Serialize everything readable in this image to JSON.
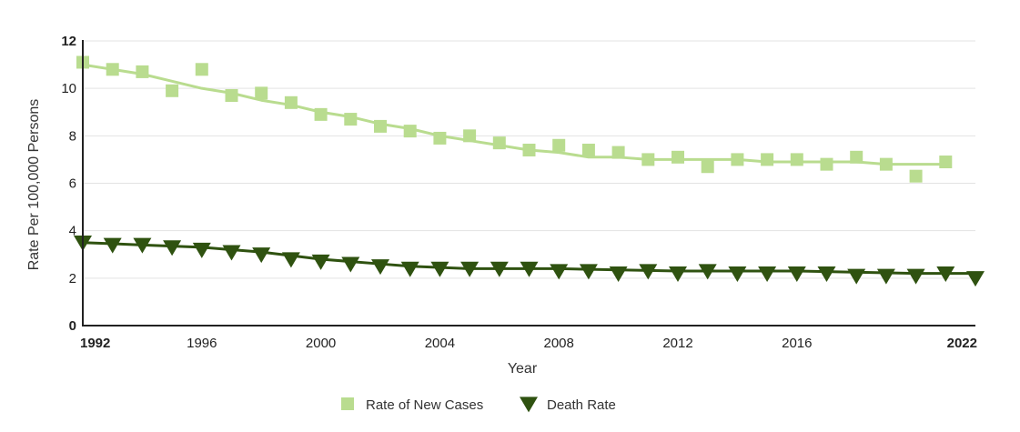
{
  "chart_data": {
    "type": "scatter",
    "xlabel": "Year",
    "ylabel": "Rate Per 100,000 Persons",
    "xlim": [
      1992,
      2022
    ],
    "ylim": [
      0,
      12
    ],
    "x_ticks": [
      {
        "value": 1992,
        "label": "1992",
        "bold": true
      },
      {
        "value": 1996,
        "label": "1996",
        "bold": false
      },
      {
        "value": 2000,
        "label": "2000",
        "bold": false
      },
      {
        "value": 2004,
        "label": "2004",
        "bold": false
      },
      {
        "value": 2008,
        "label": "2008",
        "bold": false
      },
      {
        "value": 2012,
        "label": "2012",
        "bold": false
      },
      {
        "value": 2016,
        "label": "2016",
        "bold": false
      },
      {
        "value": 2022,
        "label": "2022",
        "bold": true
      }
    ],
    "y_ticks": [
      {
        "value": 0,
        "label": "0",
        "bold": true
      },
      {
        "value": 2,
        "label": "2",
        "bold": false
      },
      {
        "value": 4,
        "label": "4",
        "bold": false
      },
      {
        "value": 6,
        "label": "6",
        "bold": false
      },
      {
        "value": 8,
        "label": "8",
        "bold": false
      },
      {
        "value": 10,
        "label": "10",
        "bold": false
      },
      {
        "value": 12,
        "label": "12",
        "bold": true
      }
    ],
    "grid": true,
    "legend_position": "bottom-center",
    "series": [
      {
        "name": "Rate of New Cases",
        "marker": "square",
        "color": "#b9dc8f",
        "x": [
          1992,
          1993,
          1994,
          1995,
          1996,
          1997,
          1998,
          1999,
          2000,
          2001,
          2002,
          2003,
          2004,
          2005,
          2006,
          2007,
          2008,
          2009,
          2010,
          2011,
          2012,
          2013,
          2014,
          2015,
          2016,
          2017,
          2018,
          2019,
          2020,
          2021
        ],
        "values": [
          11.1,
          10.8,
          10.7,
          9.9,
          10.8,
          9.7,
          9.8,
          9.4,
          8.9,
          8.7,
          8.4,
          8.2,
          7.9,
          8.0,
          7.7,
          7.4,
          7.6,
          7.4,
          7.3,
          7.0,
          7.1,
          6.7,
          7.0,
          7.0,
          7.0,
          6.8,
          7.1,
          6.8,
          6.3,
          6.9
        ],
        "trend_x": [
          1992,
          1993,
          1994,
          1995,
          1996,
          1997,
          1998,
          1999,
          2000,
          2001,
          2002,
          2003,
          2004,
          2005,
          2006,
          2007,
          2008,
          2009,
          2010,
          2011,
          2012,
          2013,
          2014,
          2015,
          2016,
          2017,
          2018,
          2019,
          2020,
          2021
        ],
        "trend_values": [
          11.0,
          10.8,
          10.6,
          10.3,
          10.0,
          9.8,
          9.5,
          9.3,
          9.0,
          8.8,
          8.5,
          8.3,
          8.0,
          7.8,
          7.6,
          7.4,
          7.3,
          7.1,
          7.1,
          7.0,
          7.0,
          7.0,
          7.0,
          6.9,
          6.9,
          6.9,
          6.9,
          6.8,
          6.8,
          6.8
        ]
      },
      {
        "name": "Death Rate",
        "marker": "triangle-down",
        "color": "#2f5210",
        "x": [
          1992,
          1993,
          1994,
          1995,
          1996,
          1997,
          1998,
          1999,
          2000,
          2001,
          2002,
          2003,
          2004,
          2005,
          2006,
          2007,
          2008,
          2009,
          2010,
          2011,
          2012,
          2013,
          2014,
          2015,
          2016,
          2017,
          2018,
          2019,
          2020,
          2021,
          2022
        ],
        "values": [
          3.5,
          3.4,
          3.4,
          3.3,
          3.2,
          3.1,
          3.0,
          2.8,
          2.7,
          2.6,
          2.5,
          2.4,
          2.4,
          2.4,
          2.4,
          2.4,
          2.3,
          2.3,
          2.2,
          2.3,
          2.2,
          2.3,
          2.2,
          2.2,
          2.2,
          2.2,
          2.1,
          2.1,
          2.1,
          2.2,
          2.0
        ],
        "trend_x": [
          1992,
          1994,
          1996,
          1998,
          2000,
          2002,
          2003,
          2005,
          2008,
          2012,
          2016,
          2020,
          2022
        ],
        "trend_values": [
          3.5,
          3.4,
          3.3,
          3.1,
          2.8,
          2.6,
          2.5,
          2.4,
          2.4,
          2.3,
          2.3,
          2.2,
          2.2
        ]
      }
    ]
  }
}
